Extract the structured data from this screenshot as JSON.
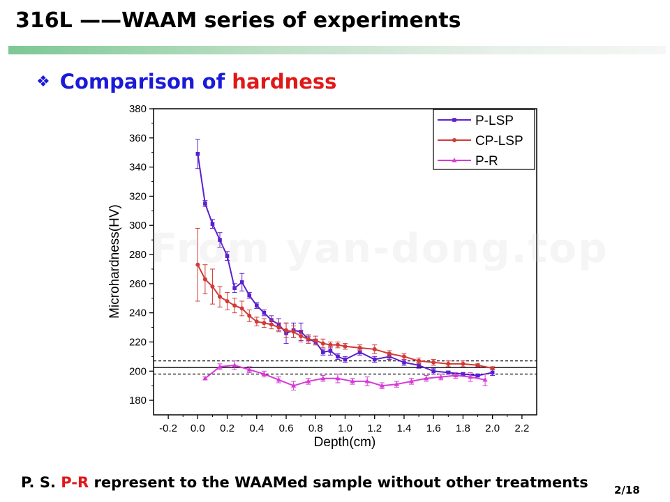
{
  "slide": {
    "title": "316L ——WAAM series of experiments",
    "subheading_bullet": "❖",
    "subheading_part1": "Comparison of ",
    "subheading_part2": "hardness",
    "note_prefix": "P. S.  ",
    "note_highlight": "P-R",
    "note_rest": " represent to the WAAMed sample without other treatments",
    "page_number": "2/18",
    "watermark": "From yan-dong.top"
  },
  "chart_data": {
    "type": "line",
    "xlabel": "Depth(cm)",
    "ylabel": "Microhardness(HV)",
    "xlim": [
      -0.3,
      2.3
    ],
    "ylim": [
      170,
      380
    ],
    "xticks": [
      -0.2,
      0.0,
      0.2,
      0.4,
      0.6,
      0.8,
      1.0,
      1.2,
      1.4,
      1.6,
      1.8,
      2.0,
      2.2
    ],
    "xtick_labels": [
      "-0.2",
      "0.0",
      "0.2",
      "0.4",
      "0.6",
      "0.8",
      "1.0",
      "1.2",
      "1.4",
      "1.6",
      "1.8",
      "2.0",
      "2.2"
    ],
    "yticks": [
      180,
      200,
      220,
      240,
      260,
      280,
      300,
      320,
      340,
      360,
      380
    ],
    "ytick_labels": [
      "180",
      "200",
      "220",
      "240",
      "260",
      "280",
      "300",
      "320",
      "340",
      "360",
      "380"
    ],
    "legend_position": "top-right",
    "reference_lines": [
      {
        "y": 202.5,
        "style": "solid"
      },
      {
        "y": 207,
        "style": "dashed"
      },
      {
        "y": 198,
        "style": "dashed"
      }
    ],
    "series": [
      {
        "name": "P-LSP",
        "color": "#5b1fd0",
        "marker": "square",
        "x": [
          0.0,
          0.05,
          0.1,
          0.15,
          0.2,
          0.25,
          0.3,
          0.35,
          0.4,
          0.45,
          0.5,
          0.55,
          0.6,
          0.65,
          0.7,
          0.75,
          0.8,
          0.85,
          0.9,
          0.95,
          1.0,
          1.1,
          1.2,
          1.3,
          1.4,
          1.5,
          1.6,
          1.7,
          1.8,
          1.9,
          2.0
        ],
        "y": [
          349,
          315,
          301,
          290,
          279,
          257,
          261,
          252,
          245,
          240,
          235,
          232,
          226,
          228,
          227,
          222,
          220,
          213,
          214,
          210,
          208,
          213,
          208,
          210,
          206,
          204,
          200,
          199,
          198,
          197,
          199
        ],
        "err": [
          10,
          2,
          3,
          5,
          3,
          3,
          6,
          2,
          2,
          2,
          3,
          4,
          7,
          5,
          6,
          2,
          2,
          2,
          3,
          2,
          2,
          2,
          2,
          2,
          2,
          2,
          2,
          1,
          1,
          1,
          2
        ]
      },
      {
        "name": "CP-LSP",
        "color": "#d23a36",
        "marker": "circle",
        "x": [
          0.0,
          0.05,
          0.1,
          0.15,
          0.2,
          0.25,
          0.3,
          0.35,
          0.4,
          0.45,
          0.5,
          0.55,
          0.6,
          0.65,
          0.7,
          0.75,
          0.8,
          0.85,
          0.9,
          0.95,
          1.0,
          1.1,
          1.2,
          1.3,
          1.4,
          1.5,
          1.6,
          1.7,
          1.8,
          1.9,
          2.0
        ],
        "y": [
          273,
          263,
          258,
          251,
          248,
          245,
          243,
          238,
          234,
          233,
          232,
          230,
          228,
          227,
          224,
          222,
          221,
          219,
          218,
          218,
          217,
          216,
          215,
          212,
          210,
          207,
          206,
          205,
          205,
          204,
          202
        ],
        "err": [
          25,
          10,
          12,
          7,
          6,
          5,
          5,
          4,
          3,
          3,
          3,
          3,
          5,
          4,
          4,
          3,
          3,
          3,
          2,
          2,
          2,
          2,
          3,
          2,
          2,
          2,
          2,
          2,
          2,
          1,
          1
        ]
      },
      {
        "name": "P-R",
        "color": "#d63ad6",
        "marker": "triangle",
        "x": [
          0.05,
          0.15,
          0.25,
          0.35,
          0.45,
          0.55,
          0.65,
          0.75,
          0.85,
          0.95,
          1.05,
          1.15,
          1.25,
          1.35,
          1.45,
          1.55,
          1.65,
          1.75,
          1.85,
          1.95
        ],
        "y": [
          195,
          203,
          204,
          201,
          198,
          194,
          190,
          193,
          195,
          195,
          193,
          193,
          190,
          191,
          193,
          195,
          196,
          197,
          196,
          194
        ],
        "err": [
          1,
          2,
          3,
          2,
          2,
          2,
          3,
          2,
          2,
          3,
          2,
          3,
          2,
          2,
          2,
          2,
          2,
          2,
          3,
          4
        ]
      }
    ]
  }
}
